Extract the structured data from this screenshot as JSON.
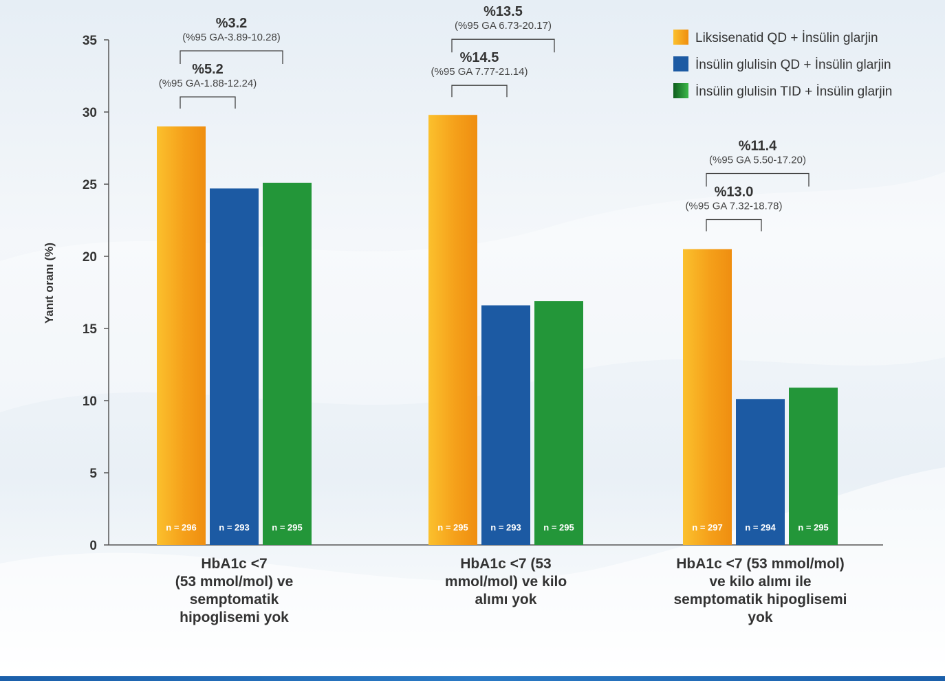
{
  "chart_data": {
    "type": "bar",
    "ylabel": "Yanıt oranı (%)",
    "ylim": [
      0,
      35
    ],
    "yticks": [
      0,
      5,
      10,
      15,
      20,
      25,
      30,
      35
    ],
    "categories": [
      [
        "HbA1c <7",
        "(53 mmol/mol) ve",
        "semptomatik",
        "hipoglisemi yok"
      ],
      [
        "HbA1c <7 (53",
        "mmol/mol) ve kilo",
        "alımı yok"
      ],
      [
        "HbA1c <7 (53 mmol/mol)",
        "ve kilo alımı ile",
        "semptomatik hipoglisemi",
        "yok"
      ]
    ],
    "series": [
      {
        "name": "Liksisenatid QD + İnsülin glarjin",
        "color": "#f5a01a",
        "values": [
          29.0,
          29.8,
          20.5
        ],
        "n": [
          "n = 296",
          "n = 295",
          "n = 297"
        ]
      },
      {
        "name": "İnsülin glulisin QD + İnsülin glarjin",
        "color": "#1c5aa3",
        "values": [
          24.7,
          16.6,
          10.1
        ],
        "n": [
          "n = 293",
          "n = 293",
          "n = 294"
        ]
      },
      {
        "name": "İnsülin glulisin TID + İnsülin glarjin",
        "color": "#239639",
        "values": [
          25.1,
          16.9,
          10.9
        ],
        "n": [
          "n = 295",
          "n = 295",
          "n = 295"
        ]
      }
    ],
    "annotations": [
      {
        "group": 0,
        "from": 0,
        "to": 2,
        "level": "outer",
        "label": "%3.2",
        "ci": "(%95 GA-3.89-10.28)"
      },
      {
        "group": 0,
        "from": 0,
        "to": 1,
        "level": "inner",
        "label": "%5.2",
        "ci": "(%95 GA-1.88-12.24)"
      },
      {
        "group": 1,
        "from": 0,
        "to": 2,
        "level": "outer",
        "label": "%13.5",
        "ci": "(%95 GA 6.73-20.17)"
      },
      {
        "group": 1,
        "from": 0,
        "to": 1,
        "level": "inner",
        "label": "%14.5",
        "ci": "(%95 GA 7.77-21.14)"
      },
      {
        "group": 2,
        "from": 0,
        "to": 2,
        "level": "outer",
        "label": "%11.4",
        "ci": "(%95 GA 5.50-17.20)"
      },
      {
        "group": 2,
        "from": 0,
        "to": 1,
        "level": "inner",
        "label": "%13.0",
        "ci": "(%95 GA 7.32-18.78)"
      }
    ],
    "legend_position": "top-right"
  }
}
